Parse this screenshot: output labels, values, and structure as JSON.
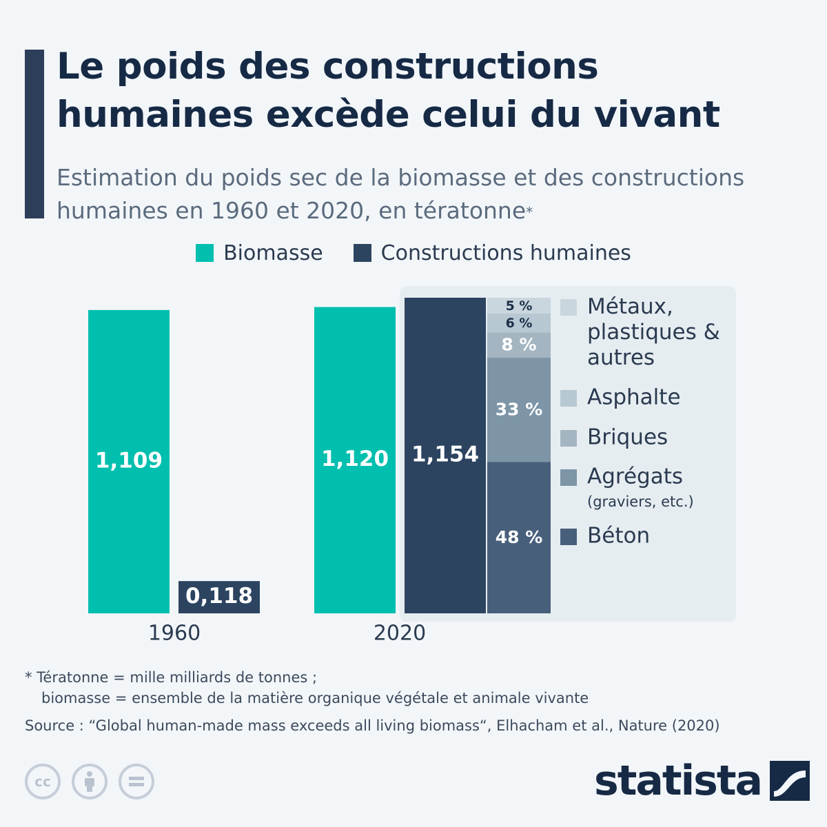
{
  "title_line1": "Le poids des constructions",
  "title_line2": "humaines excède celui du vivant",
  "subtitle_line1": "Estimation du poids sec de la biomasse et des constructions",
  "subtitle_line2": "humaines en 1960 et 2020, en tératonne",
  "subtitle_star": "*",
  "legend": [
    {
      "label": "Biomasse",
      "color": "#00bfae"
    },
    {
      "label": "Constructions humaines",
      "color": "#2c4460"
    }
  ],
  "footnote_line1": "* Tératonne = mille milliards de tonnes ;",
  "footnote_line2": "biomasse = ensemble de la matière organique végétale et animale vivante",
  "source": "Source : “Global human-made mass exceeds all living biomass“, Elhacham et al., Nature (2020)",
  "brand": "statista",
  "license_icons": [
    "cc-icon",
    "attribution-icon",
    "no-derivatives-icon"
  ],
  "chart_data": {
    "type": "bar",
    "categories": [
      "1960",
      "2020"
    ],
    "series": [
      {
        "name": "Biomasse",
        "values_display": [
          "1,109",
          "1,120"
        ],
        "values": [
          1.109,
          1.12
        ],
        "color": "#00bfae"
      },
      {
        "name": "Constructions humaines",
        "values_display": [
          "0,118",
          "1,154"
        ],
        "values": [
          0.118,
          1.154
        ],
        "color": "#2c4460"
      }
    ],
    "breakdown_2020": {
      "segments": [
        {
          "label": "Béton",
          "sublabel": "",
          "percent": 48,
          "display": "48 %",
          "color": "#485f7c",
          "text_color": "#ffffff"
        },
        {
          "label": "Agrégats",
          "sublabel": "(graviers, etc.)",
          "percent": 33,
          "display": "33 %",
          "color": "#7d95a6",
          "text_color": "#ffffff"
        },
        {
          "label": "Briques",
          "sublabel": "",
          "percent": 8,
          "display": "8 %",
          "color": "#a4b5c1",
          "text_color": "#ffffff"
        },
        {
          "label": "Asphalte",
          "sublabel": "",
          "percent": 6,
          "display": "6 %",
          "color": "#b7c8d2",
          "text_color": "#1c2f47"
        },
        {
          "label": "Métaux, plastiques & autres",
          "sublabel": "",
          "percent": 5,
          "display": "5 %",
          "color": "#cad6de",
          "text_color": "#1c2f47"
        }
      ]
    },
    "ylim": [
      0,
      1.2
    ]
  }
}
